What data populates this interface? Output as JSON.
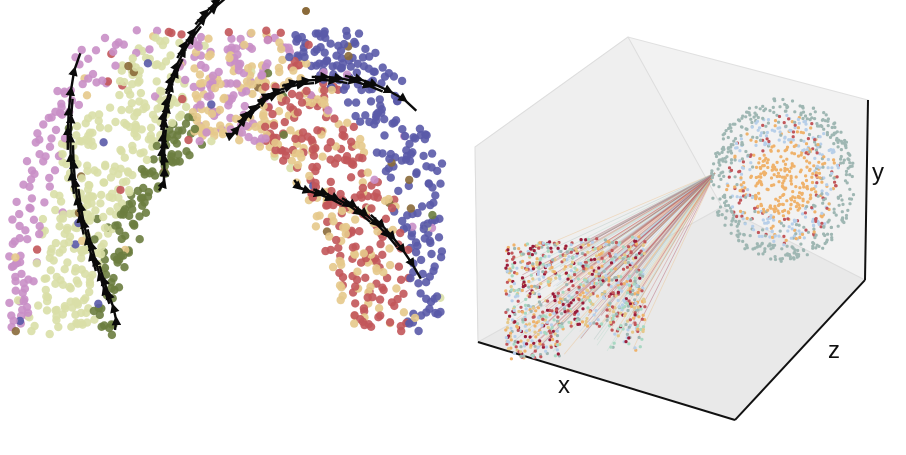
{
  "figure": {
    "right_panel": {
      "x_axis_label": "x",
      "y_axis_label": "y",
      "z_axis_label": "z"
    }
  },
  "colors": {
    "olive": "#6b7d3f",
    "pale_green": "#d9dfa7",
    "pink_purple": "#c98fc7",
    "brick_red": "#c2565a",
    "indigo": "#5a5aa8",
    "tan": "#e5c98b",
    "brown": "#8a6a3a",
    "light_blue": "#b7cfe9",
    "orange": "#efb26b",
    "slate_teal": "#9fb7b3",
    "mint": "#a8d8c2",
    "maroon": "#9a1c3a",
    "line_black": "#0a0a0a",
    "axis_black": "#111111",
    "pane_grey": "#f2f2f2"
  }
}
